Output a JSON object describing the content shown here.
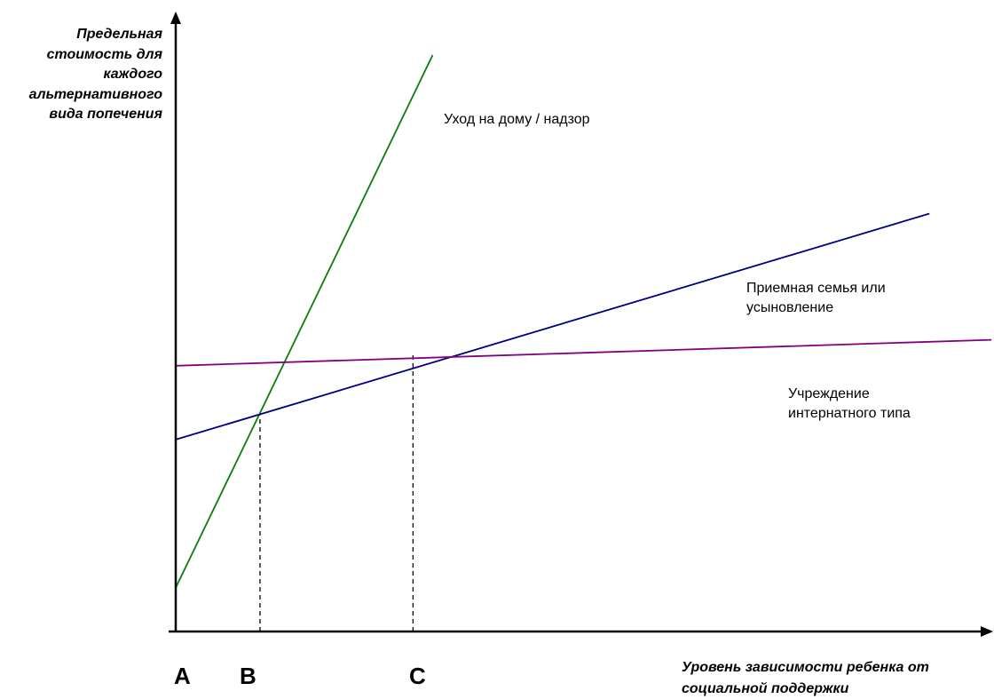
{
  "chart_data": {
    "type": "line",
    "ylabel": "Предельная\nстоимость для\nкаждого\nальтернативного\nвида попечения",
    "xlabel": "Уровень зависимости ребенка от\nсоциальной поддержки",
    "xlim": [
      0,
      100
    ],
    "ylim": [
      0,
      100
    ],
    "grid": false,
    "legend": "none",
    "x_tick_labels": [
      "A",
      "B",
      "C"
    ],
    "x_tick_positions": [
      0,
      10.3,
      29.0
    ],
    "reference_lines": [
      {
        "x": 10.3,
        "y": 37.5,
        "style": "dashed",
        "color": "#000000"
      },
      {
        "x": 29.0,
        "y": 48.1,
        "style": "dashed",
        "color": "#000000"
      }
    ],
    "series": [
      {
        "name": "Уход на дому / надзор",
        "color": "#0a7d0a",
        "x": [
          0,
          31.4
        ],
        "y": [
          7.6,
          100
        ]
      },
      {
        "name": "Приемная семья или\nусыновление",
        "color": "#000080",
        "x": [
          0,
          92.1
        ],
        "y": [
          33.3,
          72.5
        ]
      },
      {
        "name": "Учреждение\nинтернатного типа",
        "color": "#800080",
        "x": [
          0,
          99.7
        ],
        "y": [
          46.1,
          50.6
        ]
      }
    ]
  }
}
